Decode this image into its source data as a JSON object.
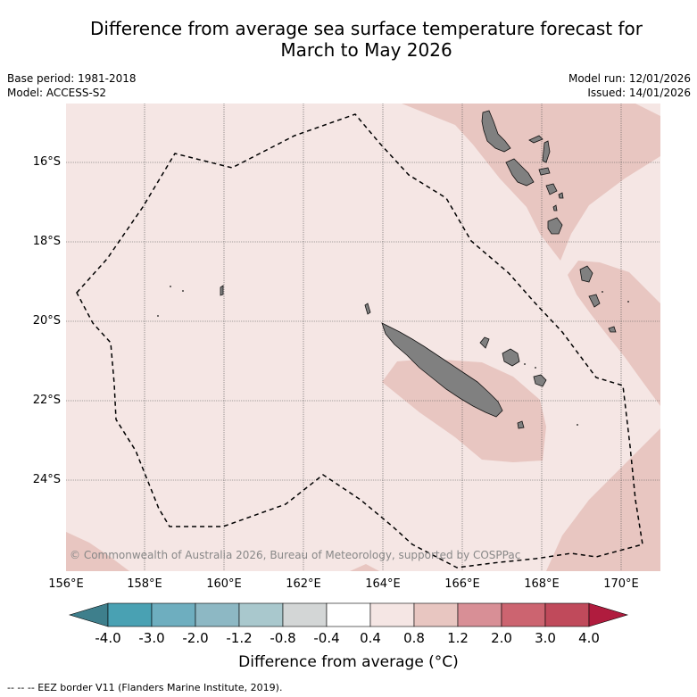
{
  "title": {
    "line1": "Difference from average sea surface temperature forecast for",
    "line2": "March to May 2026"
  },
  "meta": {
    "base_period": "Base period: 1981-2018",
    "model": "Model: ACCESS-S2",
    "model_run": "Model run: 12/01/2026",
    "issued": "Issued: 14/01/2026"
  },
  "map": {
    "lat_labels": [
      "16°S",
      "18°S",
      "20°S",
      "22°S",
      "24°S"
    ],
    "lon_labels": [
      "156°E",
      "158°E",
      "160°E",
      "162°E",
      "164°E",
      "166°E",
      "168°E",
      "170°E"
    ],
    "copyright": "© Commonwealth of Australia 2026, Bureau of Meteorology, supported by COSPPac",
    "colors": {
      "anomaly_0_4_to_0_8": "#f5e6e4",
      "anomaly_0_8_to_1_2": "#e8c6c1",
      "land": "#808080",
      "eez_border": "#000000"
    }
  },
  "colorbar": {
    "ticks": [
      "-4.0",
      "-3.0",
      "-2.0",
      "-1.2",
      "-0.8",
      "-0.4",
      "0.4",
      "0.8",
      "1.2",
      "2.0",
      "3.0",
      "4.0"
    ],
    "colors": [
      "#3e7f8c",
      "#49a1b3",
      "#6eaebf",
      "#8db8c4",
      "#a9c8cd",
      "#d3d6d6",
      "#ffffff",
      "#f5e6e4",
      "#e8c6c1",
      "#d88f96",
      "#cc6470",
      "#c04a5b",
      "#b01c3e"
    ],
    "title": "Difference from average (°C)"
  },
  "footnote": "--  --  -- EEZ border V11 (Flanders Marine Institute, 2019)."
}
